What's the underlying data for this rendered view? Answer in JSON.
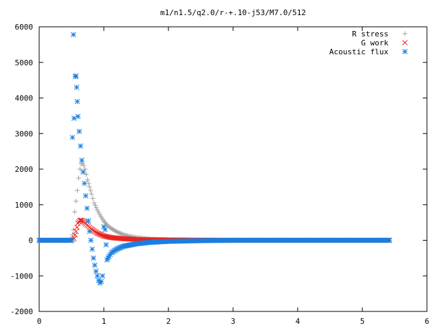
{
  "chart_data": {
    "type": "scatter",
    "title": "m1/n1.5/q2.0/r-+.10-j53/M7.0/512",
    "xlabel": "",
    "ylabel": "",
    "xlim": [
      0,
      6
    ],
    "ylim": [
      -2000,
      6000
    ],
    "x_ticks": [
      "0",
      "1",
      "2",
      "3",
      "4",
      "5",
      "6"
    ],
    "y_ticks": [
      "-2000",
      "-1000",
      "0",
      "1000",
      "2000",
      "3000",
      "4000",
      "5000",
      "6000"
    ],
    "grid": false,
    "legend_position": "top-right",
    "series": [
      {
        "name": "R stress",
        "marker": "plus",
        "color": "#a0a0a0",
        "x": [
          0.0,
          0.1,
          0.2,
          0.3,
          0.4,
          0.5,
          0.53,
          0.55,
          0.57,
          0.59,
          0.61,
          0.63,
          0.65,
          0.67,
          0.69,
          0.71,
          0.73,
          0.75,
          0.78,
          0.81,
          0.85,
          0.9,
          0.95,
          1.0,
          1.05,
          1.1,
          1.2,
          1.3,
          1.4,
          1.5,
          1.7,
          2.0,
          2.5,
          3.0,
          4.0,
          5.0,
          5.42
        ],
        "y": [
          0,
          0,
          0,
          0,
          0,
          0,
          300,
          800,
          1100,
          1400,
          1750,
          2000,
          2150,
          2150,
          2100,
          2000,
          1850,
          1700,
          1500,
          1300,
          1050,
          850,
          680,
          540,
          430,
          350,
          240,
          160,
          110,
          75,
          35,
          12,
          3,
          1,
          0,
          0,
          0
        ]
      },
      {
        "name": "G work",
        "marker": "x",
        "color": "#e8221e",
        "x": [
          0.0,
          0.1,
          0.2,
          0.3,
          0.4,
          0.5,
          0.54,
          0.57,
          0.6,
          0.63,
          0.66,
          0.69,
          0.72,
          0.76,
          0.8,
          0.85,
          0.9,
          0.95,
          1.0,
          1.1,
          1.2,
          1.3,
          1.5,
          1.7,
          2.0,
          2.3,
          3.0,
          4.0,
          5.0,
          5.42
        ],
        "y": [
          0,
          0,
          0,
          0,
          0,
          0,
          50,
          250,
          480,
          560,
          560,
          520,
          460,
          400,
          330,
          260,
          200,
          160,
          120,
          80,
          60,
          45,
          25,
          15,
          8,
          4,
          0,
          0,
          0,
          0
        ]
      },
      {
        "name": "Acoustic flux",
        "marker": "star",
        "color": "#1a7fe0",
        "x": [
          0.0,
          0.1,
          0.2,
          0.3,
          0.4,
          0.5,
          0.53,
          0.54,
          0.56,
          0.57,
          0.58,
          0.59,
          0.6,
          0.62,
          0.64,
          0.66,
          0.68,
          0.7,
          0.72,
          0.74,
          0.76,
          0.78,
          0.8,
          0.82,
          0.84,
          0.86,
          0.88,
          0.9,
          0.92,
          0.94,
          0.96,
          0.98,
          1.0,
          1.02,
          1.05,
          1.08,
          1.12,
          1.2,
          1.3,
          1.5,
          1.7,
          2.0,
          2.5,
          3.0,
          4.0,
          5.0,
          5.42
        ],
        "y": [
          0,
          0,
          0,
          0,
          0,
          0,
          5780,
          3430,
          4600,
          4620,
          4300,
          3900,
          3480,
          3060,
          2650,
          2250,
          1920,
          1600,
          1250,
          900,
          550,
          250,
          0,
          -250,
          -500,
          -700,
          -870,
          -1000,
          -1130,
          -1200,
          -1160,
          -1000,
          380,
          300,
          -550,
          -450,
          -350,
          -250,
          -170,
          -100,
          -60,
          -30,
          -10,
          0,
          0,
          0,
          0
        ]
      }
    ]
  }
}
